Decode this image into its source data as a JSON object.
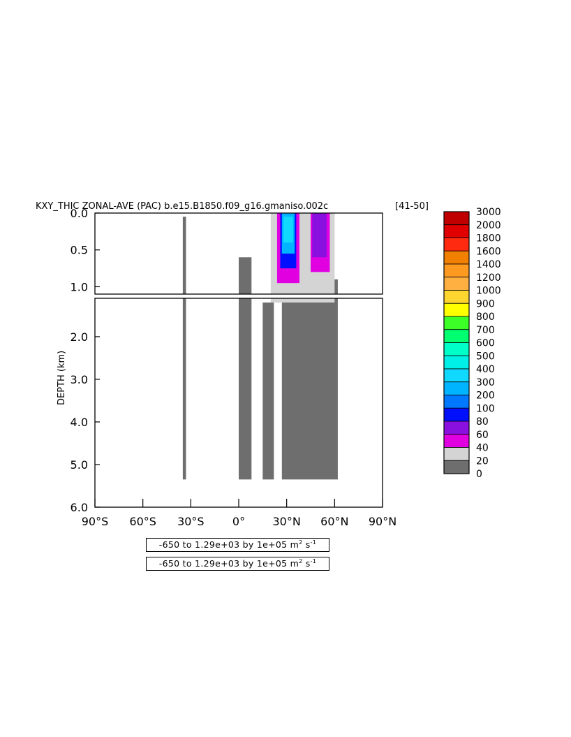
{
  "chart_data": {
    "type": "heatmap",
    "title": "KXY_THIC ZONAL-AVE (PAC) b.e15.B1850.f09_g16.gmaniso.002c",
    "title_suffix": "[41-50]",
    "ylabel": "DEPTH (km)",
    "xlabel": "",
    "x_ticks": [
      "90°S",
      "60°S",
      "30°S",
      "0°",
      "30°N",
      "60°N",
      "90°N"
    ],
    "x_tick_values": [
      -90,
      -60,
      -30,
      0,
      30,
      60,
      90
    ],
    "xlim": [
      -90,
      90
    ],
    "y_ticks_upper": [
      "0.0",
      "0.5",
      "1.0"
    ],
    "y_tick_values_upper": [
      0,
      0.5,
      1.0
    ],
    "y_ticks_lower": [
      "2.0",
      "3.0",
      "4.0",
      "5.0",
      "6.0"
    ],
    "y_tick_values_lower": [
      2,
      3,
      4,
      5,
      6
    ],
    "ylim_upper": [
      0,
      1.1
    ],
    "ylim_lower": [
      1.1,
      6.0
    ],
    "units": "m² s⁻¹",
    "scale": "1e+05",
    "colorbar": {
      "levels": [
        "3000",
        "2000",
        "1800",
        "1600",
        "1400",
        "1200",
        "1000",
        "900",
        "800",
        "700",
        "600",
        "500",
        "400",
        "300",
        "200",
        "100",
        "80",
        "60",
        "40",
        "20",
        "0"
      ],
      "colors": [
        "#c00000",
        "#e00000",
        "#ff2a10",
        "#f28000",
        "#ff9a20",
        "#ffb040",
        "#ffd630",
        "#ffff00",
        "#3cff28",
        "#00ff70",
        "#00ffc8",
        "#00f0e8",
        "#10d8ff",
        "#00b4ff",
        "#0078ff",
        "#0010ff",
        "#8a10e0",
        "#e000e0",
        "#d4d4d4",
        "#6e6e6e"
      ]
    },
    "regions": [
      {
        "level": "0-20",
        "color": "#6e6e6e",
        "lat": [
          27,
          62
        ],
        "depth": [
          0.9,
          5.35
        ]
      },
      {
        "level": "0-20",
        "color": "#6e6e6e",
        "lat": [
          0,
          8
        ],
        "depth": [
          0.6,
          5.35
        ]
      },
      {
        "level": "0-20",
        "color": "#6e6e6e",
        "lat": [
          15,
          22
        ],
        "depth": [
          1.2,
          5.35
        ]
      },
      {
        "level": "0-20",
        "color": "#6e6e6e",
        "lat": [
          -35,
          -33
        ],
        "depth": [
          0.05,
          5.35
        ]
      },
      {
        "level": "20-40",
        "color": "#d4d4d4",
        "lat": [
          20,
          60
        ],
        "depth": [
          0,
          1.2
        ]
      },
      {
        "level": "40-60",
        "color": "#e000e0",
        "lat": [
          24,
          38
        ],
        "depth": [
          0,
          0.95
        ]
      },
      {
        "level": "40-60",
        "color": "#e000e0",
        "lat": [
          45,
          57
        ],
        "depth": [
          0,
          0.8
        ]
      },
      {
        "level": "60-80",
        "color": "#8a10e0",
        "lat": [
          46,
          55
        ],
        "depth": [
          0,
          0.6
        ]
      },
      {
        "level": "80-100",
        "color": "#0010ff",
        "lat": [
          26,
          36
        ],
        "depth": [
          0,
          0.75
        ]
      },
      {
        "level": "200-300",
        "color": "#00b4ff",
        "lat": [
          27,
          35
        ],
        "depth": [
          0,
          0.55
        ]
      },
      {
        "level": "300-400",
        "color": "#10d8ff",
        "lat": [
          28,
          34
        ],
        "depth": [
          0.05,
          0.4
        ]
      }
    ]
  },
  "info_boxes": [
    {
      "range": "-650 to 1.29e+03 by 1e+05 m",
      "exp": "2",
      "tail": " s",
      "exp2": "-1"
    },
    {
      "range": "-650 to 1.29e+03 by 1e+05 m",
      "exp": "2",
      "tail": " s",
      "exp2": "-1"
    }
  ]
}
